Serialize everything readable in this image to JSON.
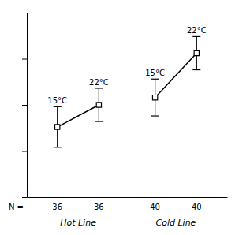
{
  "chart_data": {
    "type": "line",
    "categories": [
      "15°C",
      "22°C"
    ],
    "series": [
      {
        "name": "Hot Line",
        "values": [
          0.38,
          0.5
        ],
        "errors": [
          0.11,
          0.09
        ],
        "n": [
          36,
          36
        ]
      },
      {
        "name": "Cold Line",
        "values": [
          0.54,
          0.78
        ],
        "errors": [
          0.1,
          0.09
        ],
        "n": [
          40,
          40
        ]
      }
    ],
    "annotations": [
      "N ="
    ],
    "ylim": [
      0.0,
      1.0
    ],
    "yticks": [
      0.0,
      0.25,
      0.5,
      0.75,
      1.0
    ],
    "tick_labels": false,
    "marker": "square",
    "color": "#000000"
  }
}
